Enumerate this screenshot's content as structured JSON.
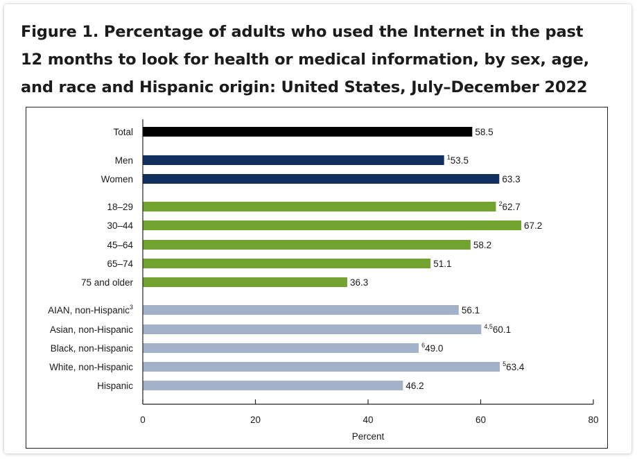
{
  "figure": {
    "title_lines": [
      "Figure 1. Percentage of adults who used the Internet in the past",
      "12 months to look for health or medical information, by sex, age,",
      "and race and Hispanic origin: United States, July–December 2022"
    ]
  },
  "chart_data": {
    "type": "bar",
    "orientation": "horizontal",
    "title": "Figure 1. Percentage of adults who used the Internet in the past 12 months to look for health or medical information, by sex, age, and race and Hispanic origin: United States, July–December 2022",
    "xlabel": "Percent",
    "ylabel": "",
    "xlim": [
      0,
      80
    ],
    "xticks": [
      0,
      20,
      40,
      60,
      80
    ],
    "grid": false,
    "colors": {
      "total": "#000000",
      "sex": "#12305f",
      "age": "#71a32e",
      "race": "#a3b2c8"
    },
    "bars": [
      {
        "category": "Total",
        "label_sup": "",
        "value": 58.5,
        "value_sup": "",
        "group": "total"
      },
      {
        "category": "Men",
        "label_sup": "",
        "value": 53.5,
        "value_sup": "1",
        "group": "sex"
      },
      {
        "category": "Women",
        "label_sup": "",
        "value": 63.3,
        "value_sup": "",
        "group": "sex"
      },
      {
        "category": "18–29",
        "label_sup": "",
        "value": 62.7,
        "value_sup": "2",
        "group": "age"
      },
      {
        "category": "30–44",
        "label_sup": "",
        "value": 67.2,
        "value_sup": "",
        "group": "age"
      },
      {
        "category": "45–64",
        "label_sup": "",
        "value": 58.2,
        "value_sup": "",
        "group": "age"
      },
      {
        "category": "65–74",
        "label_sup": "",
        "value": 51.1,
        "value_sup": "",
        "group": "age"
      },
      {
        "category": "75 and older",
        "label_sup": "",
        "value": 36.3,
        "value_sup": "",
        "group": "age"
      },
      {
        "category": "AIAN, non-Hispanic",
        "label_sup": "3",
        "value": 56.1,
        "value_sup": "",
        "group": "race"
      },
      {
        "category": "Asian, non-Hispanic",
        "label_sup": "",
        "value": 60.1,
        "value_sup": "4,5",
        "group": "race"
      },
      {
        "category": "Black, non-Hispanic",
        "label_sup": "",
        "value": 49.0,
        "value_sup": "6",
        "group": "race"
      },
      {
        "category": "White, non-Hispanic",
        "label_sup": "",
        "value": 63.4,
        "value_sup": "5",
        "group": "race"
      },
      {
        "category": "Hispanic",
        "label_sup": "",
        "value": 46.2,
        "value_sup": "",
        "group": "race"
      }
    ]
  }
}
